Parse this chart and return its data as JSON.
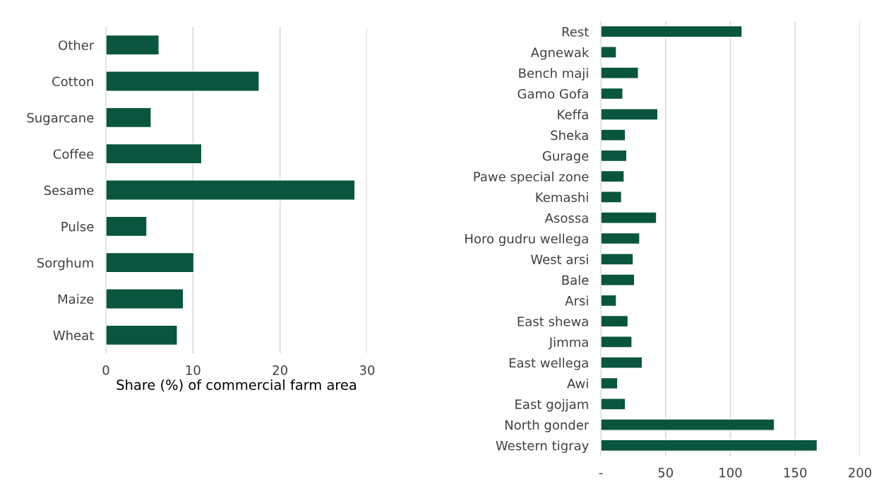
{
  "chart_data": [
    {
      "type": "bar",
      "orientation": "horizontal",
      "xlabel": "Share (%) of commercial farm area",
      "categories": [
        "Other",
        "Cotton",
        "Sugarcane",
        "Coffee",
        "Sesame",
        "Pulse",
        "Sorghum",
        "Maize",
        "Wheat"
      ],
      "values": [
        6.1,
        17.6,
        5.2,
        11.0,
        28.6,
        4.7,
        10.1,
        8.9,
        8.2
      ],
      "color": "#0a553e",
      "xlim": [
        0,
        30
      ],
      "xticks": [
        0,
        10,
        20,
        30
      ],
      "grid": "x"
    },
    {
      "type": "bar",
      "orientation": "horizontal",
      "categories": [
        "Rest",
        "Agnewak",
        "Bench maji",
        "Gamo Gofa",
        "Keffa",
        "Sheka",
        "Gurage",
        "Pawe special zone",
        "Kemashi",
        "Asossa",
        "Horo gudru wellega",
        "West arsi",
        "Bale",
        "Arsi",
        "East shewa",
        "Jimma",
        "East wellega",
        "Awi",
        "East gojjam",
        "North gonder",
        "Western tigray"
      ],
      "values": [
        109,
        12,
        29,
        17,
        44,
        19,
        20,
        18,
        16,
        43,
        30,
        25,
        26,
        12,
        21,
        24,
        32,
        13,
        19,
        134,
        167
      ],
      "color": "#0a553e",
      "xlim": [
        0,
        200
      ],
      "xticks": [
        {
          "value": 0,
          "label": "-"
        },
        50,
        100,
        150,
        200
      ],
      "grid": "x"
    }
  ]
}
